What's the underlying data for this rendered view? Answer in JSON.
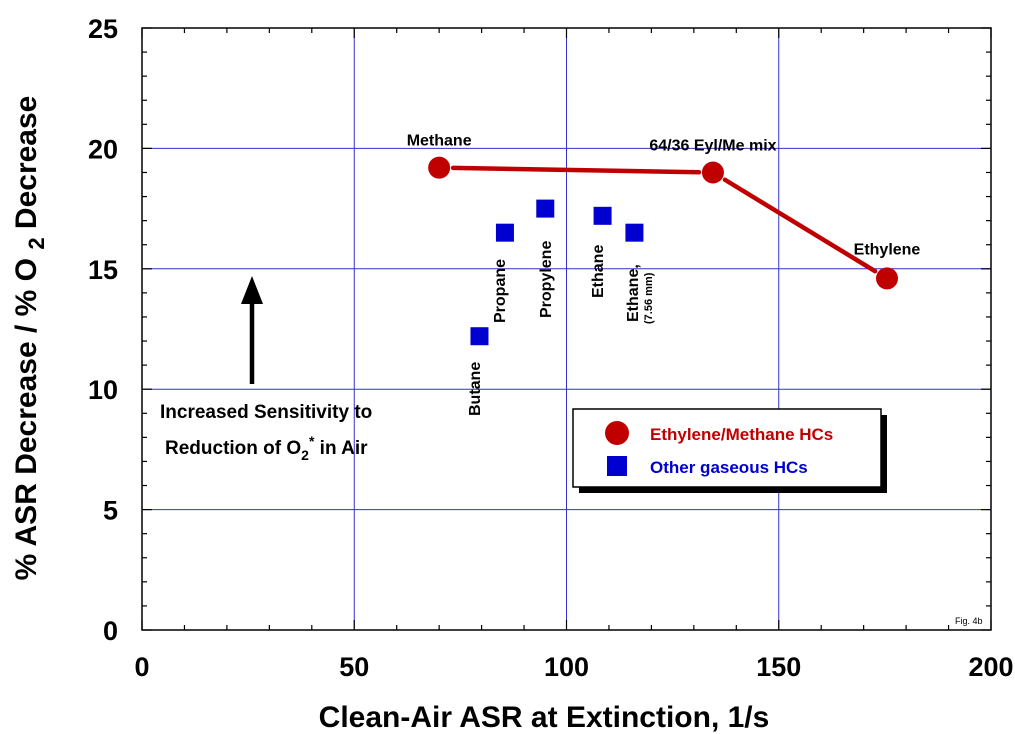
{
  "chart_data": {
    "type": "scatter",
    "xlabel": "Clean-Air ASR at Extinction, 1/s",
    "ylabel": "% ASR Decrease / % O 2 Decrease",
    "xlim": [
      0,
      200
    ],
    "ylim": [
      0,
      25
    ],
    "xticks": [
      0,
      50,
      100,
      150,
      200
    ],
    "yticks": [
      0,
      5,
      10,
      15,
      20,
      25
    ],
    "grid": true,
    "legend_position": "center-right",
    "series": [
      {
        "name": "Ethylene/Methane HCs",
        "marker": "circle",
        "connected": true,
        "color": "#c00000",
        "points": [
          {
            "x": 70,
            "y": 19.2,
            "label": "Methane"
          },
          {
            "x": 134.5,
            "y": 19.0,
            "label": "64/36 Eyl/Me mix"
          },
          {
            "x": 175.5,
            "y": 14.6,
            "label": "Ethylene"
          }
        ]
      },
      {
        "name": "Other gaseous HCs",
        "marker": "square",
        "connected": false,
        "color": "#0000d0",
        "points": [
          {
            "x": 79.5,
            "y": 12.2,
            "label": "Butane"
          },
          {
            "x": 85.5,
            "y": 16.5,
            "label": "Propane"
          },
          {
            "x": 95,
            "y": 17.5,
            "label": "Propylene"
          },
          {
            "x": 108.5,
            "y": 17.2,
            "label": "Ethane"
          },
          {
            "x": 116,
            "y": 16.5,
            "label": "Ethane,",
            "sublabel": "(7.56 mm)"
          }
        ]
      }
    ],
    "annotations": {
      "arrow_text_line1": "Increased Sensitivity to",
      "arrow_text_line2_pre": "Reduction of O",
      "arrow_text_line2_sub": "2",
      "arrow_text_line2_sup": "*",
      "arrow_text_line2_post": " in Air",
      "figure_tag": "Fig. 4b"
    }
  }
}
